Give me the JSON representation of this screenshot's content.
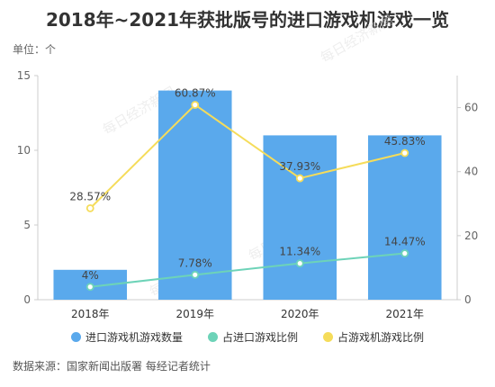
{
  "header": {
    "title": "2018年~2021年获批版号的进口游戏机游戏一览",
    "unit": "单位：个"
  },
  "footer": {
    "source": "数据来源：国家新闻出版署 每经记者统计"
  },
  "watermark": "每日经济新闻",
  "colors": {
    "bar": "#5aa9ec",
    "line_import": "#6dd3b8",
    "line_console": "#f5dc5a",
    "axis_text": "#666666",
    "grid": "#eeeeee"
  },
  "chart_data": {
    "type": "bar",
    "categories": [
      "2018年",
      "2019年",
      "2020年",
      "2021年"
    ],
    "series": [
      {
        "name": "进口游戏机游戏数量",
        "type": "bar",
        "axis": "left",
        "values": [
          2,
          14,
          11,
          11
        ]
      },
      {
        "name": "占进口游戏比例",
        "type": "line",
        "axis": "right",
        "values": [
          4,
          7.78,
          11.34,
          14.47
        ],
        "labels": [
          "4%",
          "7.78%",
          "11.34%",
          "14.47%"
        ]
      },
      {
        "name": "占游戏机游戏比例",
        "type": "line",
        "axis": "right",
        "values": [
          28.57,
          60.87,
          37.93,
          45.83
        ],
        "labels": [
          "28.57%",
          "60.87%",
          "37.93%",
          "45.83%"
        ]
      }
    ],
    "y_left": {
      "ylim": [
        0,
        15
      ],
      "ticks": [
        0,
        5,
        10,
        15
      ]
    },
    "y_right": {
      "ylim": [
        0,
        70
      ],
      "ticks": [
        0,
        20,
        40,
        60
      ]
    },
    "grid": false,
    "legend": "bottom"
  }
}
